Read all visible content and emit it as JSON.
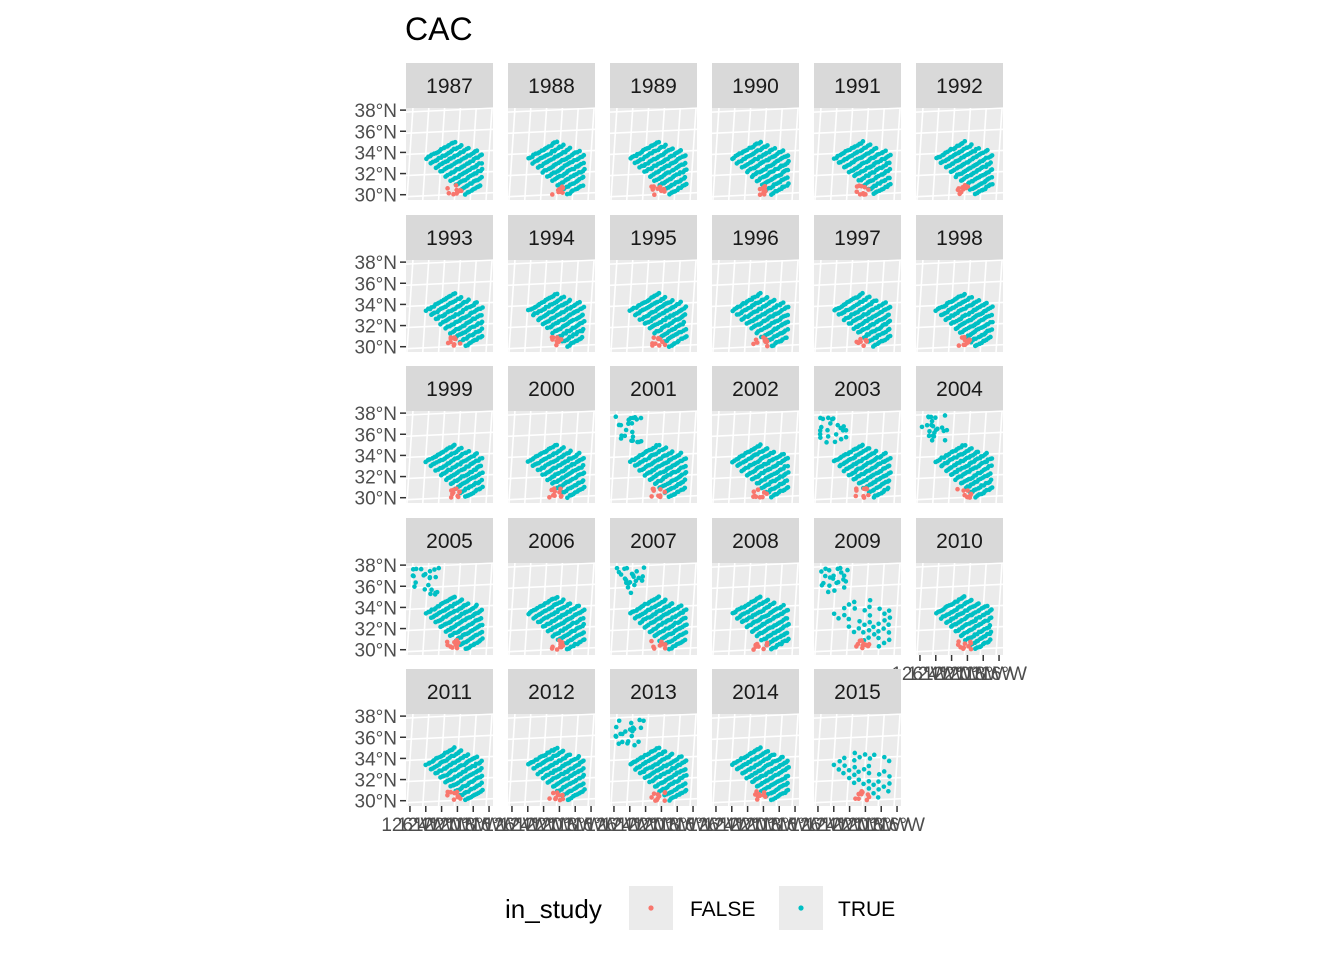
{
  "chart_data": {
    "type": "scatter",
    "title": "CAC",
    "facet_variable": "year",
    "facets": [
      "1987",
      "1988",
      "1989",
      "1990",
      "1991",
      "1992",
      "1993",
      "1994",
      "1995",
      "1996",
      "1997",
      "1998",
      "1999",
      "2000",
      "2001",
      "2002",
      "2003",
      "2004",
      "2005",
      "2006",
      "2007",
      "2008",
      "2009",
      "2010",
      "2011",
      "2012",
      "2013",
      "2014",
      "2015"
    ],
    "facet_layout": {
      "ncol": 6,
      "nrow": 5
    },
    "y_ticks": [
      "38°N",
      "36°N",
      "34°N",
      "32°N",
      "30°N"
    ],
    "y_tick_values": [
      38,
      36,
      34,
      32,
      30
    ],
    "ylim": [
      29.5,
      38.2
    ],
    "x_tick_values": [
      -126,
      -124,
      -122,
      -120,
      -118,
      -116
    ],
    "x_tick_labels": [
      "126°W",
      "124°W",
      "122°W",
      "120°W",
      "118°W",
      "116°W"
    ],
    "xlim": [
      -126.5,
      -115.5
    ],
    "grid": true,
    "legend": {
      "title": "in_study",
      "position": "bottom",
      "entries": [
        {
          "label": "FALSE",
          "color": "#F8766D"
        },
        {
          "label": "TRUE",
          "color": "#00BFC4"
        }
      ]
    },
    "series": [
      {
        "name": "FALSE",
        "color": "#F8766D",
        "description": "small cluster of stations near 30-31°N, 121-119°W"
      },
      {
        "name": "TRUE",
        "color": "#00BFC4",
        "description": "survey grid lines of stations between 30°N and 35.5°N, 124°W to 117°W; extended northward (to ~38°N) in 2001, 2003-2005, 2007, 2009, 2013"
      }
    ],
    "extended_years": [
      "2001",
      "2003",
      "2004",
      "2005",
      "2007",
      "2009",
      "2013"
    ],
    "sparse_years": [
      "2009",
      "2015"
    ]
  },
  "colors": {
    "panel_background": "#EBEBEB",
    "strip_background": "#D9D9D9",
    "grid": "#FFFFFF",
    "false_color": "#F8766D",
    "true_color": "#00BFC4"
  }
}
